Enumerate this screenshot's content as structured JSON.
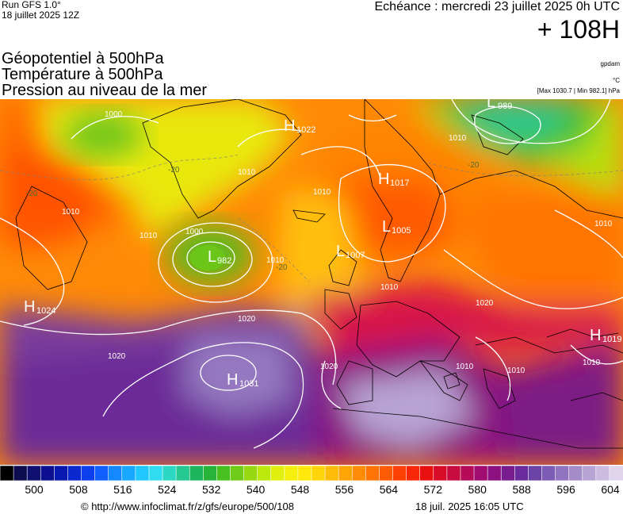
{
  "header": {
    "run": "Run GFS 1.0°",
    "run_date": "18 juillet 2025 12Z",
    "forecast_valid": "Echéance : mercredi 23 juillet 2025 0h UTC",
    "lead_time": "+ 108H"
  },
  "parameters": [
    "Géopotentiel à 500hPa",
    "Température à 500hPa",
    "Pression au niveau de la mer"
  ],
  "units": {
    "geopotential": "gpdam",
    "temperature": "°C",
    "pressure_range": "[Max 1030.7 | Min 982.1] hPa"
  },
  "pressure_centers": [
    {
      "type": "H",
      "value": "1022"
    },
    {
      "type": "L",
      "value": "989"
    },
    {
      "type": "H",
      "value": "1017"
    },
    {
      "type": "L",
      "value": "1005"
    },
    {
      "type": "L",
      "value": "1007"
    },
    {
      "type": "L",
      "value": "982"
    },
    {
      "type": "H",
      "value": "1024"
    },
    {
      "type": "H",
      "value": "1031"
    },
    {
      "type": "H",
      "value": "1019"
    }
  ],
  "isobar_labels": [
    "1000",
    "1010",
    "1020",
    "1000",
    "1010",
    "1010",
    "1010",
    "1010",
    "1010",
    "1020",
    "1020",
    "1010",
    "1020",
    "1010",
    "1010",
    "1010",
    "1010"
  ],
  "isotherm_labels": [
    "-20",
    "-20",
    "-20",
    "-20"
  ],
  "color_scale": {
    "tick_labels": [
      "500",
      "508",
      "516",
      "524",
      "532",
      "540",
      "548",
      "556",
      "564",
      "572",
      "580",
      "588",
      "596",
      "604"
    ],
    "colors": [
      "#000000",
      "#0c0c4e",
      "#101070",
      "#0c1090",
      "#0818b0",
      "#0a28d0",
      "#0c40ee",
      "#1060ff",
      "#1488ff",
      "#18a8ff",
      "#20c8ff",
      "#30dcf0",
      "#2cd8c4",
      "#24c890",
      "#1cb45c",
      "#28b438",
      "#48c020",
      "#70cc18",
      "#98d810",
      "#bce80c",
      "#e0f00c",
      "#f4f00c",
      "#ffe80a",
      "#ffd408",
      "#ffbc06",
      "#ffa404",
      "#ff8c04",
      "#ff7404",
      "#ff5a04",
      "#ff4004",
      "#f82808",
      "#e81010",
      "#d80c28",
      "#c80c40",
      "#b40c58",
      "#a00c70",
      "#8c1080",
      "#781c90",
      "#6a2c9c",
      "#6c44a8",
      "#7c5cb4",
      "#9074c0",
      "#a48cc8",
      "#b8a4d4",
      "#ccbce0",
      "#e0d4ec"
    ]
  },
  "footer": {
    "url": "© http://www.infoclimat.fr/z/gfs/europe/500/108",
    "timestamp": "18 juil. 2025 16:05 UTC"
  }
}
